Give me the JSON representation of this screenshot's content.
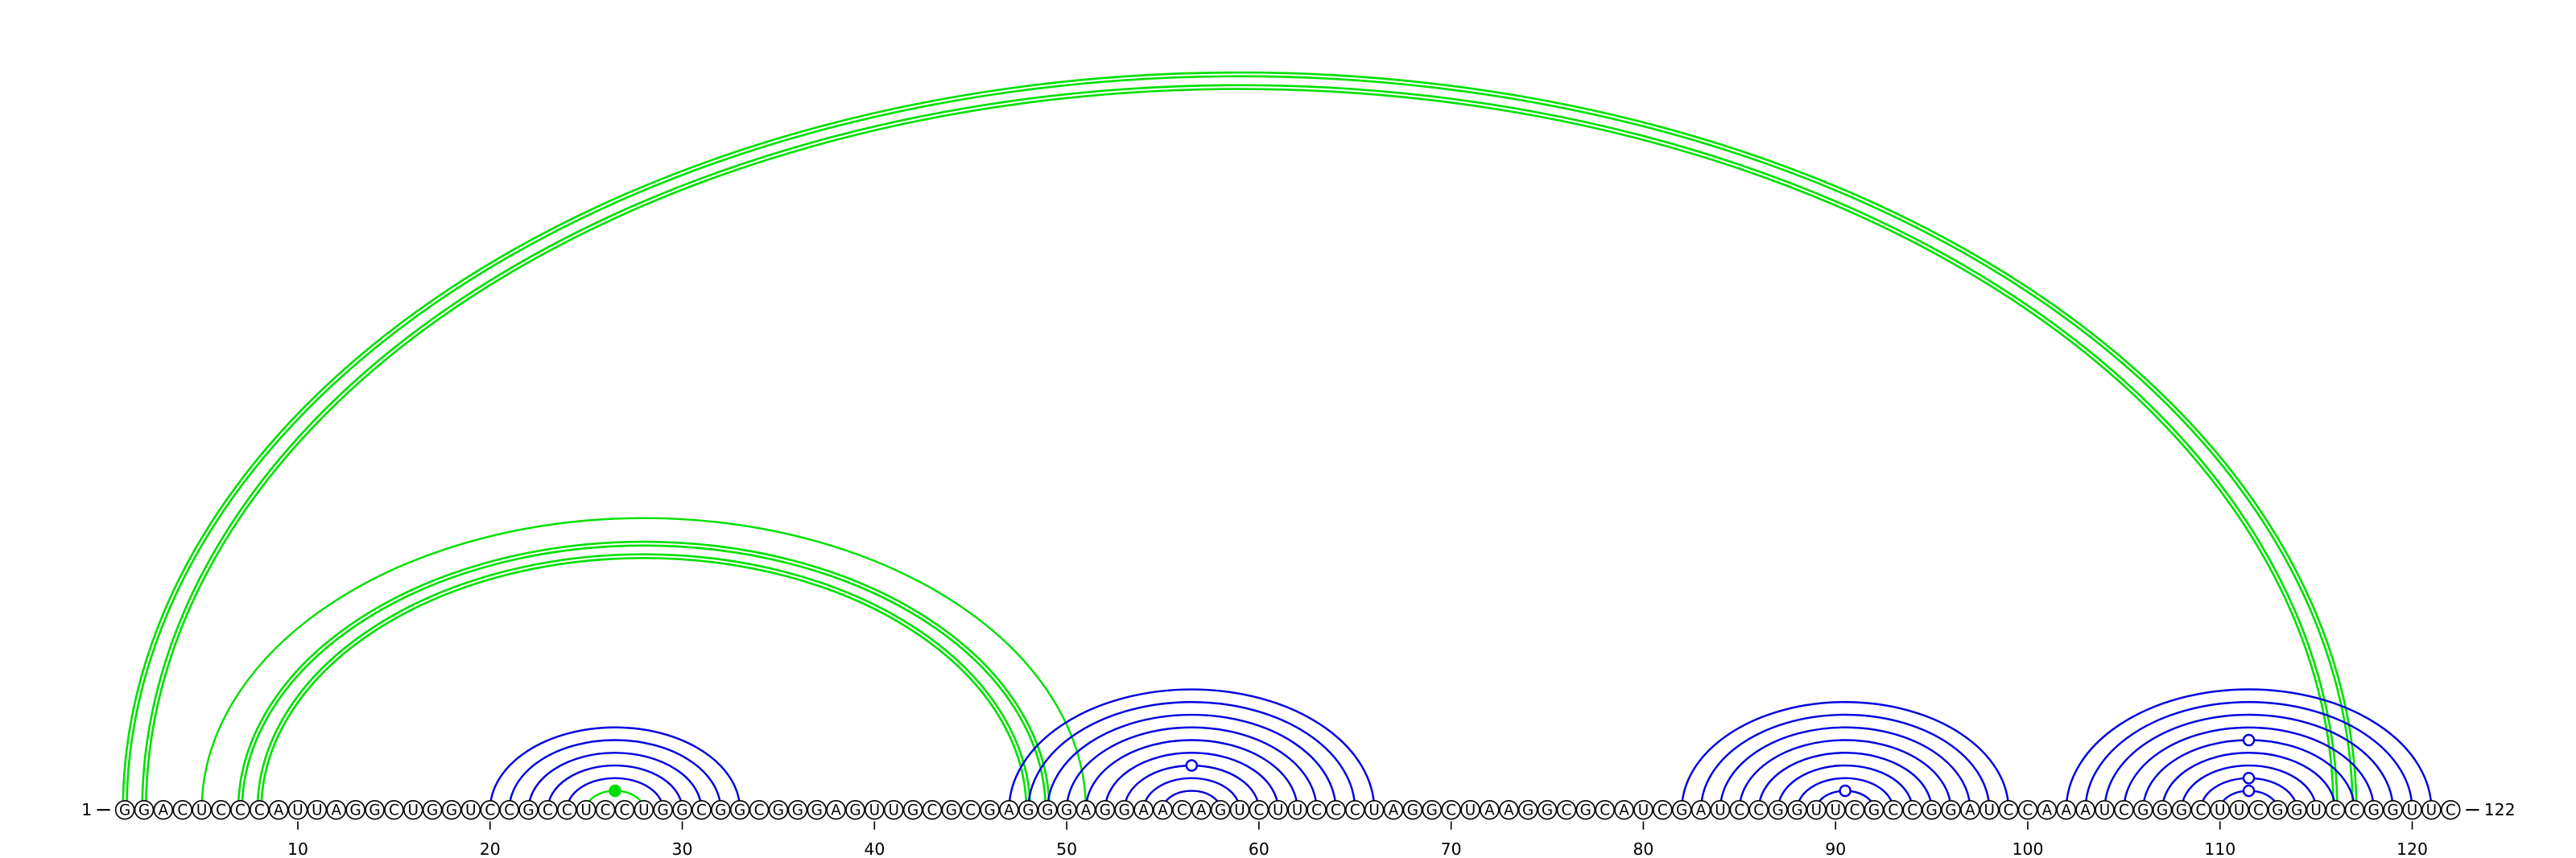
{
  "sequence": [
    "G",
    "G",
    "A",
    "C",
    "U",
    "C",
    "C",
    "C",
    "A",
    "U",
    "U",
    "A",
    "G",
    "G",
    "C",
    "U",
    "G",
    "G",
    "U",
    "C",
    "C",
    "G",
    "C",
    "C",
    "U",
    "C",
    "C",
    "U",
    "G",
    "G",
    "C",
    "G",
    "G",
    "C",
    "G",
    "G",
    "G",
    "A",
    "G",
    "U",
    "U",
    "G",
    "C",
    "G",
    "C",
    "G",
    "A",
    "G",
    "G",
    "G",
    "A",
    "G",
    "G",
    "A",
    "A",
    "C",
    "A",
    "G",
    "U",
    "C",
    "U",
    "U",
    "C",
    "C",
    "C",
    "U",
    "A",
    "G",
    "G",
    "C",
    "U",
    "A",
    "A",
    "G",
    "G",
    "C",
    "G",
    "C",
    "A",
    "U",
    "C",
    "G",
    "A",
    "U",
    "C",
    "C",
    "G",
    "G",
    "U",
    "U",
    "C",
    "G",
    "C",
    "C",
    "G",
    "G",
    "A",
    "U",
    "C",
    "C",
    "A",
    "A",
    "A",
    "U",
    "C",
    "G",
    "G",
    "G",
    "C",
    "U",
    "U",
    "C",
    "G",
    "G",
    "U",
    "C",
    "C",
    "G",
    "G",
    "U",
    "U",
    "C"
  ],
  "ends": [
    1,
    122
  ],
  "ticks": [
    10,
    20,
    30,
    40,
    50,
    60,
    70,
    80,
    90,
    100,
    110,
    120
  ],
  "pairs": [
    {
      "i": 1,
      "j": 117,
      "color": "#00e000",
      "double": true
    },
    {
      "i": 2,
      "j": 116,
      "color": "#00e000",
      "double": true
    },
    {
      "i": 5,
      "j": 51,
      "color": "#00e000"
    },
    {
      "i": 7,
      "j": 49,
      "color": "#00e000",
      "double": true
    },
    {
      "i": 8,
      "j": 48,
      "color": "#00e000",
      "double": true
    },
    {
      "i": 20,
      "j": 33,
      "color": "#0000e0"
    },
    {
      "i": 21,
      "j": 32,
      "color": "#0000e0"
    },
    {
      "i": 22,
      "j": 31,
      "color": "#0000e0"
    },
    {
      "i": 23,
      "j": 30,
      "color": "#0000e0"
    },
    {
      "i": 24,
      "j": 29,
      "color": "#0000e0"
    },
    {
      "i": 25,
      "j": 28,
      "color": "#00e000",
      "marker": true
    },
    {
      "i": 47,
      "j": 66,
      "color": "#0000e0"
    },
    {
      "i": 48,
      "j": 65,
      "color": "#0000e0"
    },
    {
      "i": 49,
      "j": 64,
      "color": "#0000e0"
    },
    {
      "i": 50,
      "j": 63,
      "color": "#0000e0"
    },
    {
      "i": 51,
      "j": 62,
      "color": "#0000e0"
    },
    {
      "i": 52,
      "j": 61,
      "color": "#0000e0"
    },
    {
      "i": 53,
      "j": 60,
      "color": "#0000e0",
      "marker": true
    },
    {
      "i": 54,
      "j": 59,
      "color": "#0000e0"
    },
    {
      "i": 55,
      "j": 58,
      "color": "#0000e0"
    },
    {
      "i": 82,
      "j": 99,
      "color": "#0000e0"
    },
    {
      "i": 83,
      "j": 98,
      "color": "#0000e0"
    },
    {
      "i": 84,
      "j": 97,
      "color": "#0000e0"
    },
    {
      "i": 85,
      "j": 96,
      "color": "#0000e0"
    },
    {
      "i": 86,
      "j": 95,
      "color": "#0000e0"
    },
    {
      "i": 87,
      "j": 94,
      "color": "#0000e0"
    },
    {
      "i": 88,
      "j": 93,
      "color": "#0000e0"
    },
    {
      "i": 89,
      "j": 92,
      "color": "#0000e0",
      "marker": true
    },
    {
      "i": 102,
      "j": 121,
      "color": "#0000e0"
    },
    {
      "i": 103,
      "j": 120,
      "color": "#0000e0"
    },
    {
      "i": 104,
      "j": 119,
      "color": "#0000e0"
    },
    {
      "i": 105,
      "j": 118,
      "color": "#0000e0"
    },
    {
      "i": 106,
      "j": 117,
      "color": "#0000e0",
      "marker": true
    },
    {
      "i": 107,
      "j": 116,
      "color": "#0000e0"
    },
    {
      "i": 108,
      "j": 115,
      "color": "#0000e0"
    },
    {
      "i": 109,
      "j": 114,
      "color": "#0000e0",
      "marker": true
    },
    {
      "i": 110,
      "j": 113,
      "color": "#0000e0",
      "marker": true
    }
  ]
}
